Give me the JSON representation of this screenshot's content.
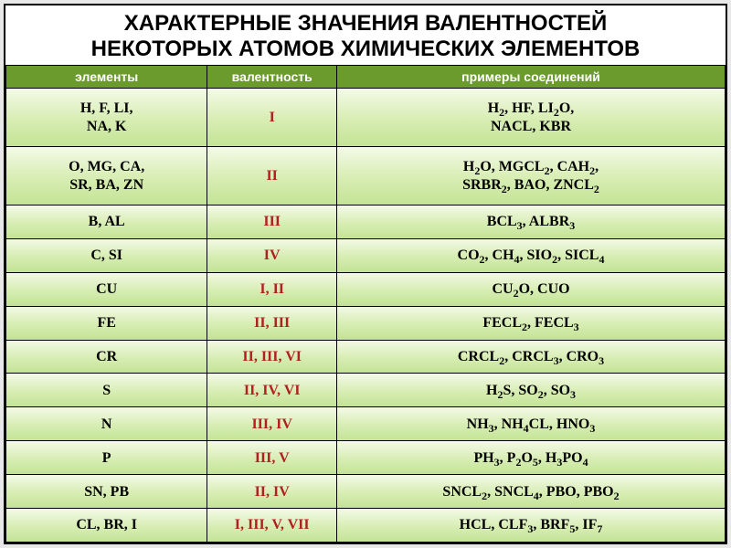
{
  "title": {
    "line1": "ХАРАКТЕРНЫЕ ЗНАЧЕНИЯ ВАЛЕНТНОСТЕЙ",
    "line2": "НЕКОТОРЫХ АТОМОВ ХИМИЧЕСКИХ ЭЛЕМЕНТОВ",
    "fontsize_pt": 18,
    "color": "#000000"
  },
  "header": {
    "elements": "элементы",
    "valency": "валентность",
    "examples": "примеры соединений",
    "background": "#6b9a2d",
    "text_color": "#ffffff",
    "fontsize_pt": 14
  },
  "table": {
    "border_color": "#000000",
    "row_gradient": [
      "#f4fae8",
      "#d9eeb6",
      "#c3e394"
    ],
    "cell_text_color": "#000000",
    "valency_color": "#b02020",
    "fontsize_pt": 16,
    "col_widths_pct": [
      28,
      18,
      54
    ]
  },
  "rows": [
    {
      "elements": "H, F, LI,<br>NA, K",
      "valency": "I",
      "examples": "H<sub>2</sub>, HF, LI<sub>2</sub>O,<br>NACL, KBR"
    },
    {
      "elements": "O, MG, CA,<br>SR, BA, ZN",
      "valency": "II",
      "examples": "H<sub>2</sub>O, MGCL<sub>2</sub>, CAH<sub>2</sub>,<br>SRBR<sub>2</sub>, BAO, ZNCL<sub>2</sub>"
    },
    {
      "elements": "B, AL",
      "valency": "III",
      "examples": "BCL<sub>3</sub>, ALBR<sub>3</sub>"
    },
    {
      "elements": "C, SI",
      "valency": "IV",
      "examples": "CO<sub>2</sub>, CH<sub>4</sub>, SIO<sub>2</sub>, SICL<sub>4</sub>"
    },
    {
      "elements": "CU",
      "valency": "I, II",
      "examples": "CU<sub>2</sub>O, CUO"
    },
    {
      "elements": "FE",
      "valency": "II, III",
      "examples": "FECL<sub>2</sub>, FECL<sub>3</sub>"
    },
    {
      "elements": "CR",
      "valency": "II, III, VI",
      "examples": "CRCL<sub>2</sub>, CRCL<sub>3</sub>, CRO<sub>3</sub>"
    },
    {
      "elements": "S",
      "valency": "II, IV, VI",
      "examples": "H<sub>2</sub>S, SO<sub>2</sub>, SO<sub>3</sub>"
    },
    {
      "elements": "N",
      "valency": "III, IV",
      "examples": "NH<sub>3</sub>, NH<sub>4</sub>CL, HNO<sub>3</sub>"
    },
    {
      "elements": "P",
      "valency": "III, V",
      "examples": "PH<sub>3</sub>, P<sub>2</sub>O<sub>5</sub>, H<sub>3</sub>PO<sub>4</sub>"
    },
    {
      "elements": "SN, PB",
      "valency": "II, IV",
      "examples": "SNCL<sub>2</sub>, SNCL<sub>4</sub>, PBO, PBO<sub>2</sub>"
    },
    {
      "elements": "CL, BR, I",
      "valency": "I, III, V, VII",
      "examples": "HCL, CLF<sub>3</sub>, BRF<sub>5</sub>, IF<sub>7</sub>"
    }
  ]
}
